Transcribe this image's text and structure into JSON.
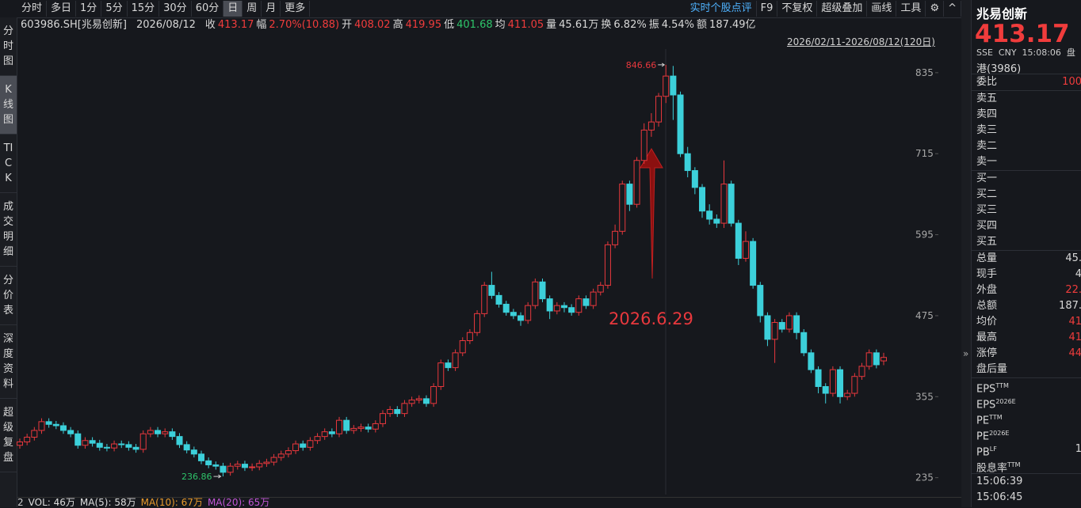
{
  "toolbar": {
    "periods": [
      "分时",
      "多日",
      "1分",
      "5分",
      "15分",
      "30分",
      "60分",
      "日",
      "周",
      "月",
      "更多"
    ],
    "tools": [
      "实时个股点评",
      "F9",
      "不复权",
      "超级叠加",
      "画线",
      "工具"
    ]
  },
  "side_tabs": [
    "分时图",
    "K线图",
    "TICK",
    "成交明细",
    "分价表",
    "深度资料",
    "超级复盘"
  ],
  "quote_bar": {
    "symbol": "603986.SH[兆易创新]",
    "date": "2026/08/12",
    "close_label": "收",
    "change_label": "幅",
    "change": "2.70%(10.88)",
    "open_label": "开",
    "high_label": "高",
    "low_label": "低",
    "avg_label": "均",
    "avg": "411.05",
    "vol_label": "量",
    "vol": "45.61万",
    "turnover_label": "换",
    "turnover": "6.82%",
    "amplitude_label": "振",
    "amplitude": "4.54%",
    "amount_label": "额",
    "amount": "187.49亿"
  },
  "range_label": "2026/02/11-2026/08/12(120日)",
  "chart_data": {
    "type": "candlestick",
    "annotation": "2026.6.29",
    "up_color": "#e8383d",
    "down_color": "#3cd0da",
    "grid": false,
    "ylim": [
      210,
      870
    ],
    "yticks": [
      235,
      355,
      475,
      595,
      715,
      835
    ],
    "open": [
      283,
      288,
      295,
      305,
      318,
      314,
      312,
      305,
      300,
      283,
      290,
      286,
      280,
      279,
      285,
      284,
      280,
      277,
      300,
      305,
      300,
      303,
      296,
      284,
      276,
      270,
      260,
      254,
      252,
      243,
      252,
      255,
      250,
      251,
      256,
      258,
      265,
      270,
      275,
      285,
      280,
      290,
      296,
      303,
      300,
      320,
      305,
      308,
      310,
      307,
      315,
      330,
      336,
      330,
      345,
      350,
      352,
      345,
      370,
      405,
      398,
      420,
      438,
      450,
      478,
      520,
      505,
      492,
      480,
      475,
      468,
      490,
      525,
      500,
      482,
      490,
      487,
      480,
      500,
      490,
      510,
      520,
      580,
      600,
      670,
      640,
      705,
      750,
      762,
      800,
      830,
      802,
      715,
      690,
      665,
      630,
      618,
      612,
      670,
      612,
      560,
      585,
      520,
      475,
      440,
      465,
      455,
      475,
      450,
      420,
      395,
      370,
      360,
      395,
      355,
      360,
      385,
      400,
      420,
      408.02
    ],
    "high": [
      293,
      300,
      310,
      323,
      323,
      319,
      317,
      310,
      305,
      295,
      295,
      291,
      285,
      290,
      290,
      289,
      285,
      305,
      310,
      310,
      308,
      308,
      301,
      289,
      281,
      275,
      265,
      259,
      257,
      257,
      260,
      260,
      256,
      261,
      263,
      270,
      275,
      280,
      290,
      290,
      295,
      301,
      308,
      308,
      325,
      325,
      313,
      315,
      315,
      320,
      335,
      341,
      341,
      350,
      355,
      357,
      357,
      375,
      410,
      410,
      425,
      443,
      455,
      483,
      525,
      540,
      510,
      497,
      485,
      480,
      495,
      530,
      530,
      505,
      495,
      495,
      492,
      505,
      505,
      515,
      525,
      585,
      610,
      675,
      675,
      710,
      760,
      775,
      805,
      846.66,
      845,
      807,
      725,
      695,
      670,
      640,
      625,
      705,
      675,
      617,
      600,
      590,
      525,
      480,
      470,
      470,
      480,
      480,
      455,
      425,
      400,
      375,
      400,
      400,
      365,
      390,
      405,
      425,
      425,
      419.95
    ],
    "low": [
      278,
      283,
      290,
      300,
      309,
      307,
      300,
      295,
      278,
      278,
      281,
      275,
      274,
      274,
      279,
      275,
      272,
      272,
      295,
      295,
      295,
      291,
      279,
      271,
      265,
      255,
      249,
      247,
      236.86,
      238,
      247,
      245,
      245,
      246,
      251,
      253,
      260,
      265,
      270,
      275,
      275,
      285,
      291,
      295,
      295,
      300,
      300,
      303,
      302,
      302,
      310,
      325,
      325,
      325,
      340,
      345,
      340,
      340,
      365,
      393,
      393,
      415,
      433,
      445,
      473,
      500,
      487,
      475,
      470,
      460,
      463,
      485,
      495,
      470,
      477,
      480,
      475,
      475,
      485,
      485,
      505,
      515,
      575,
      595,
      630,
      635,
      700,
      740,
      755,
      790,
      765,
      710,
      680,
      655,
      620,
      610,
      605,
      605,
      607,
      550,
      555,
      515,
      465,
      430,
      405,
      450,
      450,
      440,
      415,
      390,
      360,
      345,
      355,
      345,
      350,
      355,
      380,
      395,
      397,
      401.68
    ],
    "close": [
      288,
      295,
      305,
      318,
      314,
      312,
      305,
      300,
      283,
      290,
      286,
      280,
      279,
      285,
      284,
      280,
      277,
      300,
      305,
      300,
      303,
      296,
      284,
      276,
      270,
      260,
      254,
      252,
      243,
      252,
      255,
      250,
      251,
      256,
      258,
      265,
      270,
      275,
      285,
      280,
      290,
      296,
      303,
      300,
      320,
      305,
      308,
      310,
      307,
      315,
      330,
      336,
      330,
      345,
      350,
      352,
      345,
      370,
      405,
      398,
      420,
      438,
      450,
      478,
      520,
      505,
      492,
      480,
      475,
      468,
      490,
      525,
      500,
      482,
      490,
      487,
      480,
      500,
      490,
      510,
      520,
      580,
      600,
      670,
      640,
      705,
      750,
      762,
      800,
      830,
      802,
      715,
      690,
      665,
      630,
      618,
      612,
      670,
      612,
      560,
      585,
      520,
      475,
      440,
      465,
      455,
      475,
      450,
      420,
      395,
      370,
      360,
      395,
      355,
      360,
      385,
      400,
      420,
      402.29,
      413.17
    ]
  },
  "volume_legend": [
    "2",
    "VOL: 46万",
    "MA(5): 58万",
    "MA(10): 67万",
    "MA(20): 65万"
  ],
  "panel": {
    "name": "兆易创新",
    "meta": "SSE  CNY  15:08:06  盘",
    "hk": "港(3986)",
    "rows": [
      {
        "label": "委比",
        "value": "100",
        "color": "#f03c3c"
      },
      {
        "label": "卖五"
      },
      {
        "label": "卖四"
      },
      {
        "label": "卖三"
      },
      {
        "label": "卖二"
      },
      {
        "label": "卖一"
      },
      {
        "label": "买一"
      },
      {
        "label": "买二"
      },
      {
        "label": "买三"
      },
      {
        "label": "买四"
      },
      {
        "label": "买五"
      },
      {
        "label": "总量",
        "value": "45."
      },
      {
        "label": "现手",
        "value": "4"
      },
      {
        "label": "外盘",
        "value": "22.",
        "color": "#f03c3c"
      },
      {
        "label": "总额",
        "value": "187."
      },
      {
        "label": "均价",
        "value": "41",
        "color": "#f03c3c"
      },
      {
        "label": "最高",
        "value": "41",
        "color": "#f03c3c"
      },
      {
        "label": "涨停",
        "value": "44",
        "color": "#f03c3c"
      },
      {
        "label": "盘后量"
      },
      {
        "label": "EPS",
        "sup": "TTM"
      },
      {
        "label": "EPS",
        "sup": "2026E"
      },
      {
        "label": "PE",
        "sup": "TTM"
      },
      {
        "label": "PE",
        "sup": "2026E"
      },
      {
        "label": "PB",
        "sup": "LF",
        "value": "1"
      },
      {
        "label": "股息率",
        "sup": "TTM"
      }
    ],
    "times": [
      "15:06:39",
      "15:06:45"
    ]
  }
}
